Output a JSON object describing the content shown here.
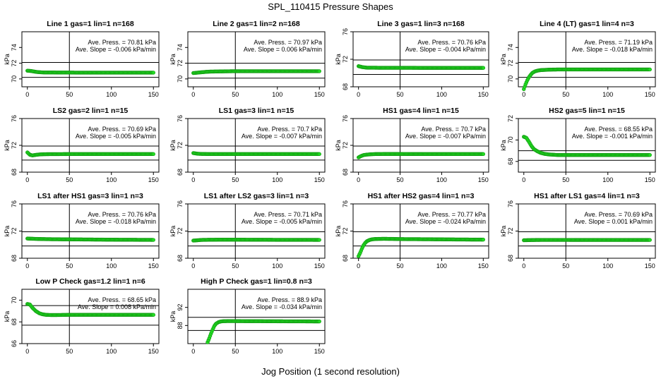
{
  "figure": {
    "title": "SPL_110415  Pressure Shapes",
    "xlabel": "Jog Position (1 second resolution)"
  },
  "chart_data": [
    {
      "type": "scatter",
      "title": "Line 1 gas=1 lin=1 n=168",
      "ylabel": "kPa",
      "xlim": [
        0,
        150
      ],
      "ylim": [
        69,
        76
      ],
      "yticks": [
        70,
        72,
        74
      ],
      "xticks": [
        0,
        50,
        100,
        150
      ],
      "hlines": [
        70.2,
        72.1
      ],
      "vline": 50,
      "annotations": [
        "Ave. Press. = 70.81 kPa",
        "Ave. Slope = -0.006 kPa/min"
      ],
      "series": [
        {
          "x": [
            0,
            5,
            10,
            15,
            20,
            30,
            40,
            50,
            60,
            80,
            100,
            120,
            140,
            150
          ],
          "y": [
            71.05,
            71.0,
            70.9,
            70.85,
            70.82,
            70.82,
            70.81,
            70.81,
            70.8,
            70.8,
            70.8,
            70.8,
            70.8,
            70.8
          ]
        }
      ]
    },
    {
      "type": "scatter",
      "title": "Line 2 gas=1 lin=2 n=168",
      "ylabel": "kPa",
      "xlim": [
        0,
        150
      ],
      "ylim": [
        69,
        76
      ],
      "yticks": [
        70,
        72,
        74
      ],
      "xticks": [
        0,
        50,
        100,
        150
      ],
      "hlines": [
        70.1,
        72.0
      ],
      "vline": 50,
      "annotations": [
        "Ave. Press. = 70.97 kPa",
        "Ave. Slope = 0.006 kPa/min"
      ],
      "series": [
        {
          "x": [
            0,
            5,
            10,
            15,
            20,
            30,
            40,
            50,
            60,
            80,
            100,
            120,
            140,
            150
          ],
          "y": [
            70.75,
            70.8,
            70.85,
            70.9,
            70.93,
            70.95,
            70.97,
            70.98,
            70.98,
            70.98,
            70.98,
            70.98,
            70.98,
            70.98
          ]
        }
      ]
    },
    {
      "type": "scatter",
      "title": "Line 3 gas=1 lin=3 n=168",
      "ylabel": "kPa",
      "xlim": [
        0,
        150
      ],
      "ylim": [
        68,
        76
      ],
      "yticks": [
        68,
        72,
        76
      ],
      "xticks": [
        0,
        50,
        100,
        150
      ],
      "hlines": [
        69.8,
        71.9
      ],
      "vline": 50,
      "annotations": [
        "Ave. Press. = 70.76 kPa",
        "Ave. Slope = -0.004 kPa/min"
      ],
      "series": [
        {
          "x": [
            0,
            5,
            10,
            20,
            30,
            40,
            50,
            60,
            80,
            100,
            120,
            140,
            150
          ],
          "y": [
            71.0,
            70.85,
            70.78,
            70.77,
            70.76,
            70.76,
            70.76,
            70.76,
            70.75,
            70.75,
            70.75,
            70.75,
            70.75
          ]
        }
      ]
    },
    {
      "type": "scatter",
      "title": "Line 4 (LT) gas=1 lin=4 n=3",
      "ylabel": "kPa",
      "xlim": [
        0,
        150
      ],
      "ylim": [
        69,
        76
      ],
      "yticks": [
        70,
        72,
        74
      ],
      "xticks": [
        0,
        50,
        100,
        150
      ],
      "hlines": [
        70.2,
        72.1
      ],
      "vline": 50,
      "annotations": [
        "Ave. Press. = 71.19 kPa",
        "Ave. Slope = -0.018 kPa/min"
      ],
      "series": [
        {
          "x": [
            0,
            2,
            4,
            6,
            8,
            10,
            13,
            16,
            20,
            25,
            30,
            40,
            50,
            60,
            80,
            100,
            120,
            140,
            150
          ],
          "y": [
            68.7,
            69.3,
            69.8,
            70.2,
            70.5,
            70.75,
            70.95,
            71.05,
            71.12,
            71.15,
            71.18,
            71.2,
            71.2,
            71.2,
            71.2,
            71.2,
            71.2,
            71.2,
            71.2
          ]
        }
      ]
    },
    {
      "type": "scatter",
      "title": "LS2 gas=2 lin=1 n=15",
      "ylabel": "kPa",
      "xlim": [
        0,
        150
      ],
      "ylim": [
        68,
        76
      ],
      "yticks": [
        68,
        72,
        76
      ],
      "xticks": [
        0,
        50,
        100,
        150
      ],
      "hlines": [
        69.8,
        71.9
      ],
      "vline": 50,
      "annotations": [
        "Ave. Press. = 70.69 kPa",
        "Ave. Slope = -0.005 kPa/min"
      ],
      "series": [
        {
          "x": [
            0,
            3,
            6,
            10,
            15,
            20,
            30,
            50,
            80,
            100,
            120,
            150
          ],
          "y": [
            70.95,
            70.6,
            70.5,
            70.58,
            70.65,
            70.68,
            70.69,
            70.7,
            70.7,
            70.7,
            70.7,
            70.7
          ]
        }
      ]
    },
    {
      "type": "scatter",
      "title": "LS1 gas=3 lin=1 n=15",
      "ylabel": "kPa",
      "xlim": [
        0,
        150
      ],
      "ylim": [
        68,
        76
      ],
      "yticks": [
        68,
        72,
        76
      ],
      "xticks": [
        0,
        50,
        100,
        150
      ],
      "hlines": [
        69.8,
        71.9
      ],
      "vline": 50,
      "annotations": [
        "Ave. Press. = 70.7 kPa",
        "Ave. Slope = -0.007 kPa/min"
      ],
      "series": [
        {
          "x": [
            0,
            5,
            10,
            20,
            30,
            50,
            80,
            100,
            120,
            150
          ],
          "y": [
            70.85,
            70.75,
            70.72,
            70.7,
            70.7,
            70.7,
            70.7,
            70.7,
            70.7,
            70.7
          ]
        }
      ]
    },
    {
      "type": "scatter",
      "title": "HS1 gas=4 lin=1 n=15",
      "ylabel": "kPa",
      "xlim": [
        0,
        150
      ],
      "ylim": [
        68,
        76
      ],
      "yticks": [
        68,
        72,
        76
      ],
      "xticks": [
        0,
        50,
        100,
        150
      ],
      "hlines": [
        69.8,
        71.9
      ],
      "vline": 50,
      "annotations": [
        "Ave. Press. = 70.7 kPa",
        "Ave. Slope = -0.007 kPa/min"
      ],
      "series": [
        {
          "x": [
            0,
            3,
            6,
            10,
            15,
            20,
            30,
            50,
            80,
            100,
            120,
            150
          ],
          "y": [
            70.2,
            70.4,
            70.55,
            70.62,
            70.67,
            70.7,
            70.71,
            70.71,
            70.7,
            70.7,
            70.7,
            70.7
          ]
        }
      ]
    },
    {
      "type": "scatter",
      "title": "HS2 gas=5 lin=1 n=15",
      "ylabel": "kPa",
      "xlim": [
        0,
        150
      ],
      "ylim": [
        67,
        72
      ],
      "yticks": [
        68,
        70,
        72
      ],
      "xticks": [
        0,
        50,
        100,
        150
      ],
      "hlines": [
        68.1,
        69.0
      ],
      "vline": 50,
      "annotations": [
        "Ave. Press. = 68.55 kPa",
        "Ave. Slope = -0.001 kPa/min"
      ],
      "series": [
        {
          "x": [
            0,
            3,
            6,
            9,
            12,
            16,
            20,
            25,
            30,
            40,
            50,
            80,
            100,
            120,
            150
          ],
          "y": [
            70.3,
            70.2,
            69.85,
            69.45,
            69.15,
            68.95,
            68.8,
            68.7,
            68.65,
            68.6,
            68.6,
            68.6,
            68.6,
            68.6,
            68.6
          ]
        }
      ]
    },
    {
      "type": "scatter",
      "title": "LS1 after HS1 gas=3 lin=1 n=3",
      "ylabel": "kPa",
      "xlim": [
        0,
        150
      ],
      "ylim": [
        68,
        76
      ],
      "yticks": [
        68,
        72,
        76
      ],
      "xticks": [
        0,
        50,
        100,
        150
      ],
      "hlines": [
        69.8,
        71.9
      ],
      "vline": 50,
      "annotations": [
        "Ave. Press. = 70.76 kPa",
        "Ave. Slope = -0.018 kPa/min"
      ],
      "series": [
        {
          "x": [
            0,
            10,
            20,
            30,
            50,
            80,
            100,
            120,
            150
          ],
          "y": [
            70.9,
            70.85,
            70.82,
            70.8,
            70.78,
            70.75,
            70.73,
            70.72,
            70.7
          ]
        }
      ]
    },
    {
      "type": "scatter",
      "title": "LS1 after LS2 gas=3 lin=1 n=3",
      "ylabel": "kPa",
      "xlim": [
        0,
        150
      ],
      "ylim": [
        68,
        76
      ],
      "yticks": [
        68,
        72,
        76
      ],
      "xticks": [
        0,
        50,
        100,
        150
      ],
      "hlines": [
        69.8,
        71.9
      ],
      "vline": 50,
      "annotations": [
        "Ave. Press. = 70.71 kPa",
        "Ave. Slope = -0.005 kPa/min"
      ],
      "series": [
        {
          "x": [
            0,
            10,
            20,
            30,
            50,
            80,
            100,
            120,
            150
          ],
          "y": [
            70.6,
            70.7,
            70.72,
            70.73,
            70.73,
            70.72,
            70.71,
            70.71,
            70.7
          ]
        }
      ]
    },
    {
      "type": "scatter",
      "title": "HS1 after HS2 gas=4 lin=1 n=3",
      "ylabel": "kPa",
      "xlim": [
        0,
        150
      ],
      "ylim": [
        68,
        76
      ],
      "yticks": [
        68,
        72,
        76
      ],
      "xticks": [
        0,
        50,
        100,
        150
      ],
      "hlines": [
        69.8,
        71.9
      ],
      "vline": 50,
      "annotations": [
        "Ave. Press. = 70.77 kPa",
        "Ave. Slope = -0.024 kPa/min"
      ],
      "series": [
        {
          "x": [
            0,
            2,
            4,
            6,
            8,
            10,
            13,
            16,
            20,
            25,
            30,
            40,
            50,
            80,
            100,
            120,
            150
          ],
          "y": [
            68.3,
            68.8,
            69.4,
            69.9,
            70.25,
            70.5,
            70.68,
            70.78,
            70.83,
            70.85,
            70.86,
            70.85,
            70.82,
            70.8,
            70.78,
            70.76,
            70.74
          ]
        }
      ]
    },
    {
      "type": "scatter",
      "title": "HS1 after LS1 gas=4 lin=1 n=3",
      "ylabel": "kPa",
      "xlim": [
        0,
        150
      ],
      "ylim": [
        68,
        76
      ],
      "yticks": [
        68,
        72,
        76
      ],
      "xticks": [
        0,
        50,
        100,
        150
      ],
      "hlines": [
        69.8,
        71.9
      ],
      "vline": 50,
      "annotations": [
        "Ave. Press. = 70.69 kPa",
        "Ave. Slope = 0.001 kPa/min"
      ],
      "series": [
        {
          "x": [
            0,
            10,
            20,
            30,
            50,
            80,
            100,
            120,
            150
          ],
          "y": [
            70.65,
            70.68,
            70.7,
            70.7,
            70.7,
            70.69,
            70.69,
            70.69,
            70.69
          ]
        }
      ]
    },
    {
      "type": "scatter",
      "title": "Low P Check gas=1.2 lin=1 n=6",
      "ylabel": "kPa",
      "xlim": [
        0,
        150
      ],
      "ylim": [
        66,
        71
      ],
      "yticks": [
        66,
        68,
        70
      ],
      "xticks": [
        0,
        50,
        100,
        150
      ],
      "hlines": [
        67.7,
        69.5
      ],
      "vline": 50,
      "annotations": [
        "Ave. Press. = 68.65 kPa",
        "Ave. Slope = 0.008 kPa/min"
      ],
      "series": [
        {
          "x": [
            0,
            3,
            6,
            10,
            14,
            18,
            22,
            28,
            35,
            50,
            80,
            100,
            120,
            150
          ],
          "y": [
            69.65,
            69.6,
            69.3,
            69.0,
            68.8,
            68.7,
            68.65,
            68.63,
            68.63,
            68.65,
            68.65,
            68.65,
            68.65,
            68.65
          ]
        }
      ]
    },
    {
      "type": "scatter",
      "title": "High P Check gas=1 lin=0.8 n=3",
      "ylabel": "kPa",
      "xlim": [
        0,
        150
      ],
      "ylim": [
        84,
        96
      ],
      "yticks": [
        88,
        92
      ],
      "xticks": [
        0,
        50,
        100,
        150
      ],
      "hlines": [
        86.9,
        89.8
      ],
      "vline": 50,
      "annotations": [
        "Ave. Press. = 88.9 kPa",
        "Ave. Slope = -0.034 kPa/min"
      ],
      "series": [
        {
          "x": [
            17,
            19,
            21,
            23,
            25,
            27,
            30,
            33,
            36,
            40,
            50,
            80,
            100,
            120,
            150
          ],
          "y": [
            84.3,
            85.2,
            86.2,
            87.1,
            87.9,
            88.4,
            88.75,
            88.9,
            88.95,
            88.97,
            88.97,
            88.95,
            88.93,
            88.92,
            88.9
          ]
        }
      ]
    }
  ]
}
